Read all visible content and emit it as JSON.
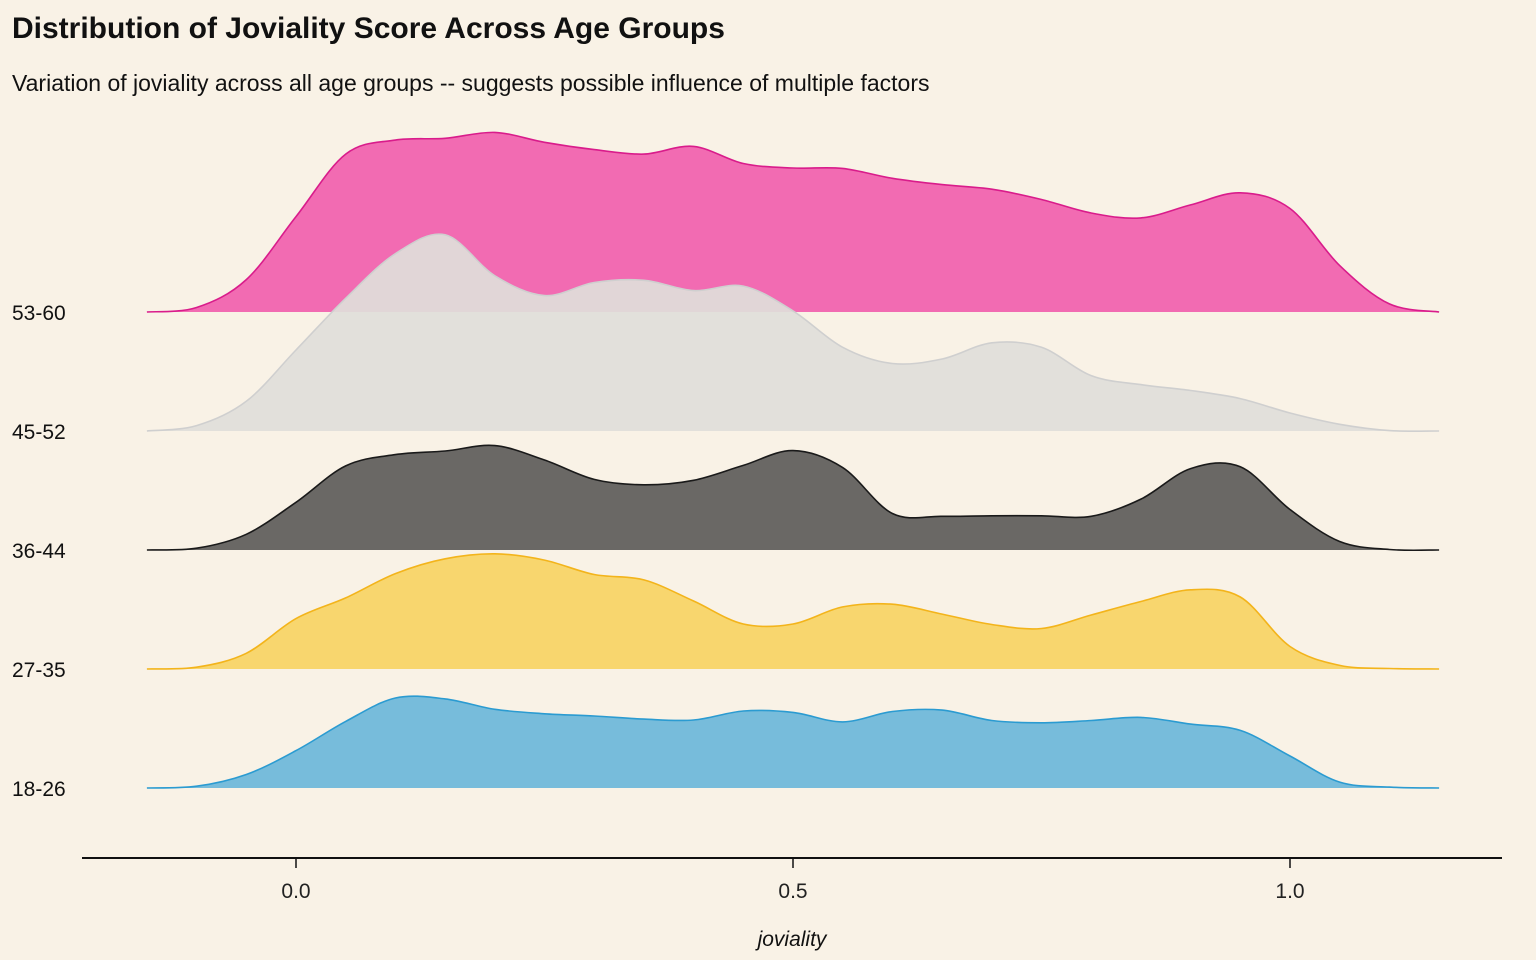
{
  "chart_data": {
    "type": "ridgeline",
    "title": "Distribution of Joviality Score Across Age Groups",
    "subtitle": "Variation of joviality across all age groups -- suggests possible influence of multiple factors",
    "xlabel": "joviality",
    "ylabel": "",
    "xlim": [
      -0.15,
      1.15
    ],
    "x_ticks": [
      0.0,
      0.5,
      1.0
    ],
    "x_tick_labels": [
      "0.0",
      "0.5",
      "1.0"
    ],
    "grid": false,
    "legend": "none",
    "categories": [
      "18-26",
      "27-35",
      "36-44",
      "45-52",
      "53-60"
    ],
    "x": [
      -0.15,
      -0.1,
      -0.05,
      0.0,
      0.05,
      0.1,
      0.15,
      0.2,
      0.25,
      0.3,
      0.35,
      0.4,
      0.45,
      0.5,
      0.55,
      0.6,
      0.65,
      0.7,
      0.75,
      0.8,
      0.85,
      0.9,
      0.95,
      1.0,
      1.05,
      1.1,
      1.15
    ],
    "series": [
      {
        "name": "18-26",
        "color": "#2b9bd1",
        "fill": "#6db8d9",
        "values": [
          0.0,
          0.04,
          0.3,
          0.83,
          1.48,
          2.0,
          1.98,
          1.75,
          1.65,
          1.6,
          1.53,
          1.51,
          1.71,
          1.68,
          1.47,
          1.7,
          1.73,
          1.5,
          1.45,
          1.5,
          1.57,
          1.42,
          1.28,
          0.71,
          0.13,
          0.02,
          0.0
        ]
      },
      {
        "name": "27-35",
        "color": "#f3b41b",
        "fill": "#f8d464",
        "values": [
          0.0,
          0.04,
          0.35,
          1.12,
          1.58,
          2.12,
          2.45,
          2.56,
          2.42,
          2.1,
          1.98,
          1.51,
          1.0,
          1.0,
          1.38,
          1.44,
          1.22,
          0.99,
          0.9,
          1.2,
          1.5,
          1.76,
          1.6,
          0.5,
          0.08,
          0.01,
          0.0
        ]
      },
      {
        "name": "36-44",
        "color": "#1a1a1a",
        "fill": "#5f5e5a",
        "values": [
          0.0,
          0.04,
          0.35,
          1.06,
          1.87,
          2.12,
          2.2,
          2.32,
          2.0,
          1.57,
          1.45,
          1.55,
          1.88,
          2.21,
          1.83,
          0.81,
          0.75,
          0.76,
          0.76,
          0.75,
          1.13,
          1.81,
          1.85,
          0.9,
          0.19,
          0.01,
          0.0
        ]
      },
      {
        "name": "45-52",
        "color": "#cfcfcf",
        "fill": "#e0dfd9",
        "values": [
          0.0,
          0.12,
          0.66,
          1.8,
          2.95,
          3.94,
          4.36,
          3.45,
          3.01,
          3.3,
          3.35,
          3.12,
          3.22,
          2.67,
          1.86,
          1.5,
          1.6,
          1.96,
          1.86,
          1.23,
          1.03,
          0.9,
          0.72,
          0.4,
          0.15,
          0.01,
          0.0
        ]
      },
      {
        "name": "53-60",
        "color": "#d91c8b",
        "fill": "#f161ad",
        "values": [
          0.0,
          0.1,
          0.72,
          2.12,
          3.51,
          3.82,
          3.86,
          3.99,
          3.77,
          3.61,
          3.51,
          3.68,
          3.3,
          3.2,
          3.19,
          2.97,
          2.83,
          2.73,
          2.5,
          2.2,
          2.09,
          2.38,
          2.65,
          2.3,
          1.03,
          0.18,
          0.0
        ]
      }
    ]
  }
}
